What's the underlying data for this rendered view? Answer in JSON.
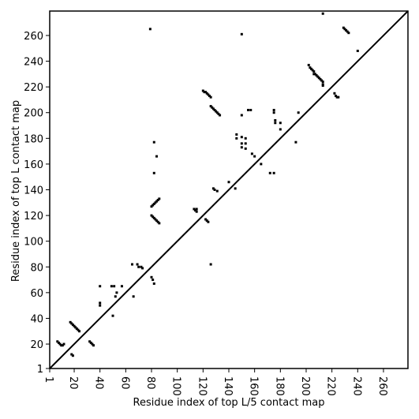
{
  "chart_data": {
    "type": "scatter",
    "xlabel": "Residue index of top L/5 contact map",
    "ylabel": "Residue index of top L contact map",
    "xlim": [
      1,
      279
    ],
    "ylim": [
      1,
      279
    ],
    "xticks": [
      1,
      20,
      40,
      60,
      80,
      100,
      120,
      140,
      160,
      180,
      200,
      220,
      240,
      260
    ],
    "yticks": [
      1,
      20,
      40,
      60,
      80,
      100,
      120,
      140,
      160,
      180,
      200,
      220,
      240,
      260
    ],
    "color": "#000000",
    "x": [
      7,
      8,
      9,
      10,
      11,
      12,
      17,
      18,
      19,
      20,
      21,
      22,
      23,
      24,
      18,
      19,
      32,
      33,
      34,
      35,
      40,
      40,
      40,
      49,
      51,
      57,
      53,
      52,
      50,
      66,
      65,
      69,
      70,
      72,
      73,
      80,
      81,
      82,
      80,
      81,
      82,
      83,
      84,
      85,
      86,
      80,
      81,
      82,
      83,
      84,
      85,
      86,
      82,
      82,
      84,
      79,
      113,
      114,
      115,
      115,
      122,
      123,
      124,
      126,
      128,
      129,
      131,
      120,
      121,
      122,
      123,
      124,
      125,
      126,
      126,
      127,
      128,
      129,
      130,
      131,
      132,
      133,
      140,
      145,
      146,
      146,
      150,
      150,
      150,
      150,
      150,
      153,
      153,
      153,
      155,
      157,
      158,
      160,
      165,
      172,
      175,
      175,
      175,
      176,
      176,
      180,
      180,
      192,
      194,
      202,
      203,
      204,
      205,
      206,
      206,
      207,
      208,
      209,
      210,
      211,
      212,
      213,
      213,
      213,
      222,
      223,
      224,
      225,
      229,
      230,
      231,
      232,
      233,
      240,
      213
    ],
    "y": [
      22,
      21,
      20,
      19,
      19,
      20,
      37,
      36,
      35,
      34,
      33,
      32,
      31,
      30,
      12,
      11,
      22,
      21,
      20,
      19,
      65,
      50,
      52,
      65,
      65,
      65,
      60,
      57,
      42,
      57,
      82,
      82,
      80,
      80,
      79,
      72,
      70,
      67,
      120,
      119,
      118,
      117,
      116,
      115,
      114,
      127,
      128,
      129,
      130,
      131,
      132,
      133,
      153,
      177,
      166,
      265,
      125,
      124,
      123,
      125,
      117,
      116,
      115,
      82,
      141,
      140,
      139,
      217,
      216,
      216,
      215,
      214,
      213,
      212,
      205,
      204,
      203,
      202,
      201,
      200,
      199,
      198,
      146,
      141,
      183,
      180,
      198,
      181,
      176,
      173,
      261,
      180,
      176,
      172,
      202,
      202,
      168,
      166,
      160,
      153,
      153,
      202,
      200,
      194,
      192,
      192,
      187,
      177,
      200,
      237,
      235,
      234,
      233,
      232,
      230,
      230,
      229,
      228,
      227,
      226,
      225,
      224,
      222,
      221,
      215,
      213,
      212,
      212,
      266,
      265,
      264,
      263,
      262,
      248,
      277
    ]
  }
}
